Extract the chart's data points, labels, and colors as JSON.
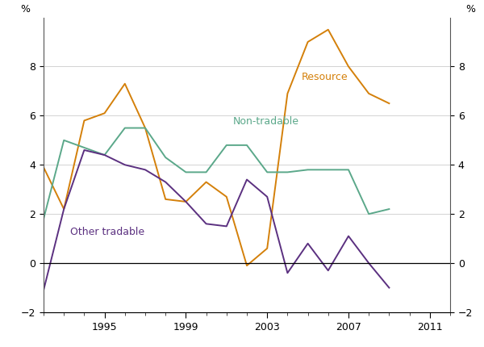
{
  "years": [
    1992,
    1993,
    1994,
    1995,
    1996,
    1997,
    1998,
    1999,
    2000,
    2001,
    2002,
    2003,
    2004,
    2005,
    2006,
    2007,
    2008,
    2009,
    2010,
    2011
  ],
  "resource": [
    3.9,
    2.2,
    5.8,
    6.1,
    7.3,
    5.5,
    2.6,
    2.5,
    3.3,
    2.7,
    -0.1,
    0.6,
    6.9,
    9.0,
    9.5,
    8.0,
    6.9,
    6.5,
    null,
    null
  ],
  "non_tradable": [
    1.8,
    5.0,
    4.7,
    4.4,
    5.5,
    5.5,
    4.3,
    3.7,
    3.7,
    4.8,
    4.8,
    3.7,
    3.7,
    3.8,
    3.8,
    3.8,
    2.0,
    2.2,
    null,
    null
  ],
  "other_tradable": [
    -1.1,
    2.2,
    4.6,
    4.4,
    4.0,
    3.8,
    3.3,
    2.5,
    1.6,
    1.5,
    3.4,
    2.7,
    -0.4,
    0.8,
    -0.3,
    1.1,
    0.0,
    -1.0,
    null,
    null
  ],
  "resource_color": "#D4800A",
  "non_tradable_color": "#5BA88A",
  "other_tradable_color": "#5B3080",
  "ylim": [
    -2,
    10
  ],
  "yticks": [
    -2,
    0,
    2,
    4,
    6,
    8
  ],
  "xlabel_ticks": [
    1995,
    1999,
    2003,
    2007,
    2011
  ],
  "ylabel": "%",
  "label_resource": "Resource",
  "label_non_tradable": "Non-tradable",
  "label_other_tradable": "Other tradable",
  "xlim_left": 1992,
  "xlim_right": 2012
}
